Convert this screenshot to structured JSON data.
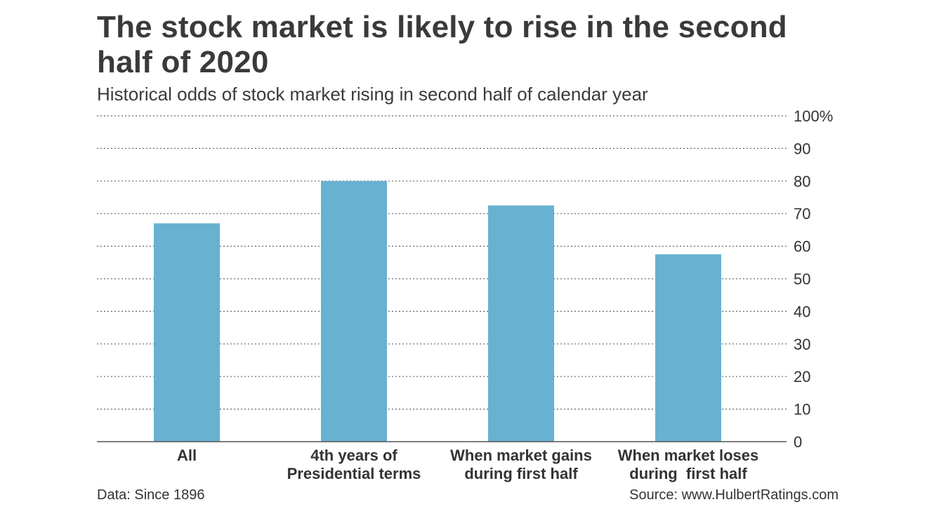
{
  "chart_data": {
    "type": "bar",
    "title": "The stock market is likely to rise in the second half of 2020",
    "subtitle": "Historical odds of stock market rising in second half of calendar year",
    "categories": [
      [
        "All"
      ],
      [
        "4th years of",
        "Presidential terms"
      ],
      [
        "When market gains",
        "during first half"
      ],
      [
        "When market loses",
        "during  first half"
      ]
    ],
    "values": [
      67,
      80,
      72.5,
      57.5
    ],
    "ylim": [
      0,
      100
    ],
    "yticks": [
      0,
      10,
      20,
      30,
      40,
      50,
      60,
      70,
      80,
      90,
      100
    ],
    "ytick_labels": [
      "0",
      "10",
      "20",
      "30",
      "40",
      "50",
      "60",
      "70",
      "80",
      "90",
      "100%"
    ],
    "y_axis_side": "right",
    "grid": "dotted horizontal",
    "legend": "none",
    "bar_color": "#67b1d1",
    "footnote": "Data: Since 1896",
    "source": "Source: www.HulbertRatings.com"
  }
}
